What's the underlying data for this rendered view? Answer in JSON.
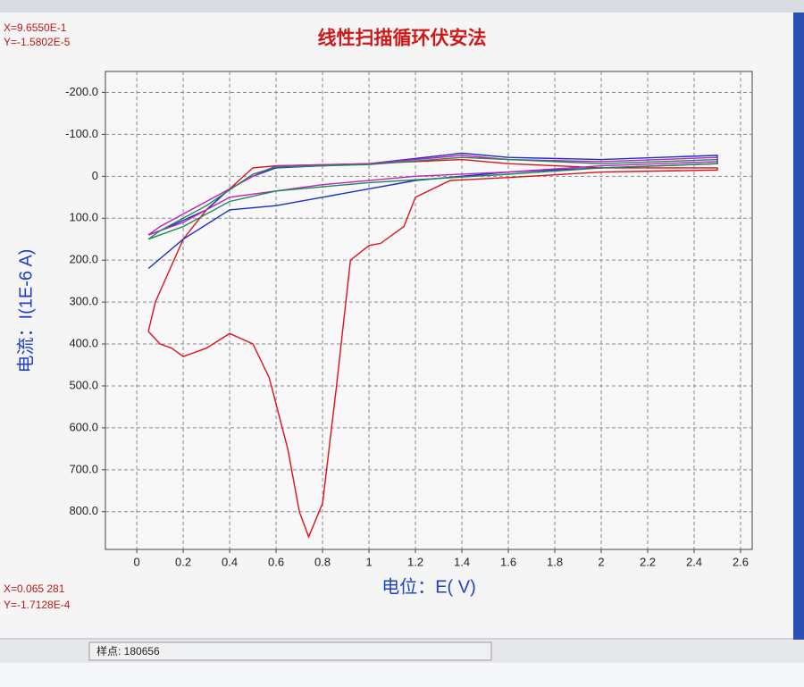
{
  "chart_data": {
    "type": "line",
    "title": "线性扫描循环伏安法",
    "y_label": "电流：I(1E-6 A)",
    "x_label": "电位：E( V)",
    "xlim": [
      -0.135,
      2.65
    ],
    "xticks": [
      0,
      0.2,
      0.4,
      0.6,
      0.8,
      1,
      1.2,
      1.4,
      1.6,
      1.8,
      2,
      2.2,
      2.4,
      2.6
    ],
    "ylim": [
      -250,
      890
    ],
    "y_inverted": true,
    "yticks": [
      {
        "value": -200,
        "label": "-200.0"
      },
      {
        "value": -100,
        "label": "-100.0"
      },
      0,
      {
        "value": 100,
        "label": "100.0"
      },
      {
        "value": 200,
        "label": "200.0"
      },
      {
        "value": 300,
        "label": "300.0"
      },
      {
        "value": 400,
        "label": "400.0"
      },
      {
        "value": 500,
        "label": "500.0"
      },
      {
        "value": 600,
        "label": "600.0"
      },
      {
        "value": 700,
        "label": "700.0"
      },
      {
        "value": 800,
        "label": "800.0"
      }
    ],
    "grid": true,
    "series": [
      {
        "color": "#e0101a",
        "x": [
          0.05,
          0.1,
          0.15,
          0.2,
          0.3,
          0.4,
          0.5,
          0.57,
          0.65,
          0.7,
          0.74,
          0.8,
          0.86,
          0.92,
          1.0,
          1.05,
          1.15,
          1.2,
          1.35,
          1.6,
          2.0,
          2.5,
          2.5,
          2.0,
          1.6,
          1.4,
          1.0,
          0.6,
          0.5,
          0.4,
          0.3,
          0.2,
          0.12,
          0.08,
          0.05
        ],
        "values": [
          370,
          400,
          410,
          430,
          410,
          375,
          400,
          480,
          650,
          800,
          860,
          780,
          500,
          200,
          165,
          160,
          120,
          50,
          10,
          3,
          -10,
          -15,
          -20,
          -20,
          -30,
          -40,
          -30,
          -25,
          -20,
          30,
          80,
          150,
          250,
          300,
          370
        ]
      },
      {
        "color": "#1a2fc8",
        "x": [
          0.05,
          0.2,
          0.4,
          0.6,
          0.8,
          1.2,
          1.6,
          2.0,
          2.5,
          2.5,
          2.0,
          1.6,
          1.4,
          1.0,
          0.6,
          0.5,
          0.4,
          0.3,
          0.1,
          0.05
        ],
        "values": [
          220,
          150,
          80,
          70,
          50,
          10,
          -10,
          -20,
          -30,
          -50,
          -40,
          -45,
          -55,
          -30,
          -20,
          0,
          30,
          80,
          130,
          140
        ]
      },
      {
        "color": "#c020c0",
        "x": [
          0.05,
          0.2,
          0.4,
          0.8,
          1.2,
          1.6,
          2.0,
          2.5,
          2.5,
          2.0,
          1.6,
          1.4,
          1.0,
          0.6,
          0.5,
          0.3,
          0.1,
          0.05
        ],
        "values": [
          140,
          110,
          50,
          20,
          0,
          -10,
          -25,
          -35,
          -45,
          -35,
          -40,
          -50,
          -30,
          -25,
          0,
          60,
          120,
          140
        ]
      },
      {
        "color": "#1a8a50",
        "x": [
          0.05,
          0.2,
          0.4,
          0.6,
          1.0,
          1.6,
          2.0,
          2.5,
          2.5,
          2.0,
          1.4,
          1.0,
          0.6,
          0.5,
          0.3,
          0.1,
          0.05
        ],
        "values": [
          150,
          120,
          60,
          35,
          15,
          -5,
          -20,
          -30,
          -40,
          -30,
          -45,
          -28,
          -22,
          -5,
          70,
          130,
          150
        ]
      }
    ]
  },
  "cursor_top": {
    "x": "X=9.6550E-1",
    "y": "Y=-1.5802E-5"
  },
  "cursor_bottom": {
    "x": "X=0.065 281",
    "y": "Y=-1.7128E-4"
  },
  "status": "样点: 180656"
}
